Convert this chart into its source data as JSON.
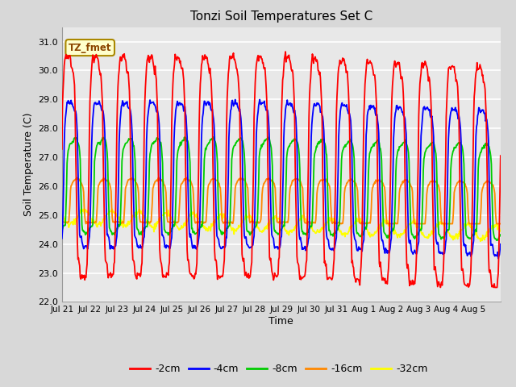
{
  "title": "Tonzi Soil Temperatures Set C",
  "xlabel": "Time",
  "ylabel": "Soil Temperature (C)",
  "ylim": [
    22.0,
    31.5
  ],
  "yticks": [
    22.0,
    23.0,
    24.0,
    25.0,
    26.0,
    27.0,
    28.0,
    29.0,
    30.0,
    31.0
  ],
  "annotation": "TZ_fmet",
  "line_colors": {
    "-2cm": "#ff0000",
    "-4cm": "#0000ff",
    "-8cm": "#00cc00",
    "-16cm": "#ff8800",
    "-32cm": "#ffff00"
  },
  "x_tick_labels": [
    "Jul 21",
    "Jul 22",
    "Jul 23",
    "Jul 24",
    "Jul 25",
    "Jul 26",
    "Jul 27",
    "Jul 28",
    "Jul 29",
    "Jul 30",
    "Jul 31",
    "Aug 1",
    "Aug 2",
    "Aug 3",
    "Aug 4",
    "Aug 5"
  ],
  "background_color": "#d8d8d8",
  "plot_bg_color": "#d8d8d8",
  "inner_bg_color": "#e8e8e8",
  "grid_color": "#ffffff"
}
